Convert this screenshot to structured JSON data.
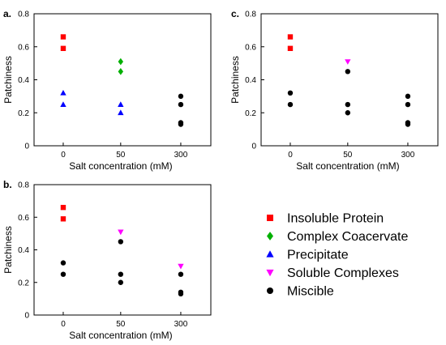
{
  "legend": [
    {
      "label": "Insoluble Protein",
      "marker": "square",
      "color": "#ff0000"
    },
    {
      "label": "Complex Coacervate",
      "marker": "diamond",
      "color": "#00b000"
    },
    {
      "label": "Precipitate",
      "marker": "triangle-up",
      "color": "#0000ff"
    },
    {
      "label": "Soluble Complexes",
      "marker": "triangle-down",
      "color": "#ff00ff"
    },
    {
      "label": "Miscible",
      "marker": "circle",
      "color": "#000000"
    }
  ],
  "chart_data": [
    {
      "type": "scatter",
      "panel_label": "a.",
      "xlabel": "Salt concentration (mM)",
      "ylabel": "Patchiness",
      "categories": [
        "0",
        "50",
        "300"
      ],
      "ylim": [
        0,
        0.8
      ],
      "yticks": [
        "0",
        "0.2",
        "0.4",
        "0.6",
        "0.8"
      ],
      "series": [
        {
          "name": "Insoluble Protein",
          "points": [
            {
              "x": "0",
              "y": 0.66
            },
            {
              "x": "0",
              "y": 0.59
            }
          ]
        },
        {
          "name": "Complex Coacervate",
          "points": [
            {
              "x": "50",
              "y": 0.51
            },
            {
              "x": "50",
              "y": 0.45
            }
          ]
        },
        {
          "name": "Precipitate",
          "points": [
            {
              "x": "0",
              "y": 0.32
            },
            {
              "x": "0",
              "y": 0.25
            },
            {
              "x": "50",
              "y": 0.25
            },
            {
              "x": "50",
              "y": 0.2
            }
          ]
        },
        {
          "name": "Soluble Complexes",
          "points": []
        },
        {
          "name": "Miscible",
          "points": [
            {
              "x": "300",
              "y": 0.3
            },
            {
              "x": "300",
              "y": 0.25
            },
            {
              "x": "300",
              "y": 0.14
            },
            {
              "x": "300",
              "y": 0.13
            }
          ]
        }
      ]
    },
    {
      "type": "scatter",
      "panel_label": "b.",
      "xlabel": "Salt concentration (mM)",
      "ylabel": "Patchiness",
      "categories": [
        "0",
        "50",
        "300"
      ],
      "ylim": [
        0,
        0.8
      ],
      "yticks": [
        "0",
        "0.2",
        "0.4",
        "0.6",
        "0.8"
      ],
      "series": [
        {
          "name": "Insoluble Protein",
          "points": [
            {
              "x": "0",
              "y": 0.66
            },
            {
              "x": "0",
              "y": 0.59
            }
          ]
        },
        {
          "name": "Complex Coacervate",
          "points": []
        },
        {
          "name": "Precipitate",
          "points": []
        },
        {
          "name": "Soluble Complexes",
          "points": [
            {
              "x": "50",
              "y": 0.51
            },
            {
              "x": "300",
              "y": 0.3
            }
          ]
        },
        {
          "name": "Miscible",
          "points": [
            {
              "x": "0",
              "y": 0.32
            },
            {
              "x": "0",
              "y": 0.25
            },
            {
              "x": "50",
              "y": 0.45
            },
            {
              "x": "50",
              "y": 0.25
            },
            {
              "x": "50",
              "y": 0.2
            },
            {
              "x": "300",
              "y": 0.25
            },
            {
              "x": "300",
              "y": 0.14
            },
            {
              "x": "300",
              "y": 0.13
            }
          ]
        }
      ]
    },
    {
      "type": "scatter",
      "panel_label": "c.",
      "xlabel": "Salt concentration (mM)",
      "ylabel": "Patchiness",
      "categories": [
        "0",
        "50",
        "300"
      ],
      "ylim": [
        0,
        0.8
      ],
      "yticks": [
        "0",
        "0.2",
        "0.4",
        "0.6",
        "0.8"
      ],
      "series": [
        {
          "name": "Insoluble Protein",
          "points": [
            {
              "x": "0",
              "y": 0.66
            },
            {
              "x": "0",
              "y": 0.59
            }
          ]
        },
        {
          "name": "Complex Coacervate",
          "points": []
        },
        {
          "name": "Precipitate",
          "points": []
        },
        {
          "name": "Soluble Complexes",
          "points": [
            {
              "x": "50",
              "y": 0.51
            }
          ]
        },
        {
          "name": "Miscible",
          "points": [
            {
              "x": "0",
              "y": 0.32
            },
            {
              "x": "0",
              "y": 0.25
            },
            {
              "x": "50",
              "y": 0.45
            },
            {
              "x": "50",
              "y": 0.25
            },
            {
              "x": "50",
              "y": 0.2
            },
            {
              "x": "300",
              "y": 0.3
            },
            {
              "x": "300",
              "y": 0.25
            },
            {
              "x": "300",
              "y": 0.14
            },
            {
              "x": "300",
              "y": 0.13
            }
          ]
        }
      ]
    }
  ]
}
